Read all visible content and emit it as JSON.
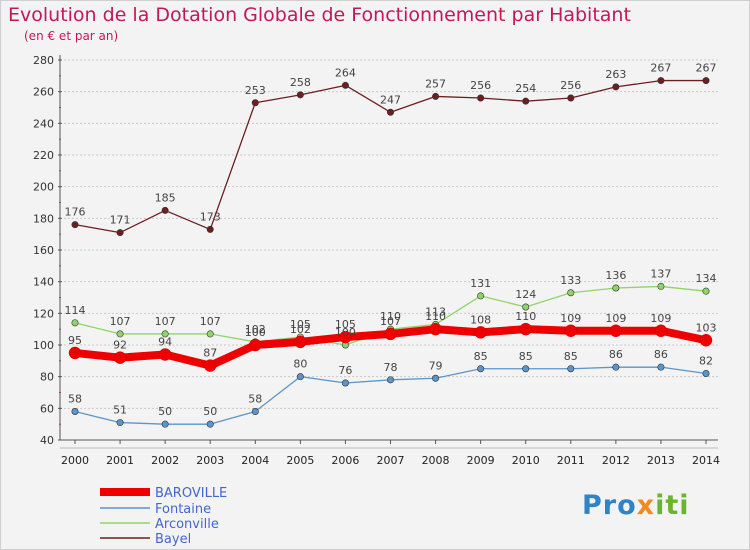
{
  "title": "Evolution de la Dotation Globale de Fonctionnement par Habitant",
  "subtitle": "(en € et par an)",
  "logo": {
    "text": "Proxiti",
    "colors": [
      "#2f83c7",
      "#f08b1f",
      "#6bb52e"
    ]
  },
  "chart_data": {
    "type": "line",
    "x": [
      "2000",
      "2001",
      "2002",
      "2003",
      "2004",
      "2005",
      "2006",
      "2007",
      "2008",
      "2009",
      "2010",
      "2011",
      "2012",
      "2013",
      "2014"
    ],
    "ylim": [
      40,
      280
    ],
    "yticks": [
      40,
      60,
      80,
      100,
      120,
      140,
      160,
      180,
      200,
      220,
      240,
      260,
      280
    ],
    "grid": "horizontal",
    "legend_position": "bottom-left",
    "series": [
      {
        "name": "BAROVILLE",
        "color": "#ee0000",
        "values": [
          95,
          92,
          94,
          87,
          100,
          102,
          105,
          107,
          110,
          108,
          110,
          109,
          109,
          109,
          103
        ]
      },
      {
        "name": "Fontaine",
        "color": "#5b95c9",
        "values": [
          58,
          51,
          50,
          50,
          58,
          80,
          76,
          78,
          79,
          85,
          85,
          85,
          86,
          86,
          82
        ]
      },
      {
        "name": "Arconville",
        "color": "#8fd46a",
        "values": [
          114,
          107,
          107,
          107,
          102,
          105,
          100,
          110,
          113,
          131,
          124,
          133,
          136,
          137,
          134
        ]
      },
      {
        "name": "Bayel",
        "color": "#6b1f1f",
        "values": [
          176,
          171,
          185,
          173,
          253,
          258,
          264,
          247,
          257,
          256,
          254,
          256,
          263,
          267,
          267
        ]
      }
    ]
  }
}
